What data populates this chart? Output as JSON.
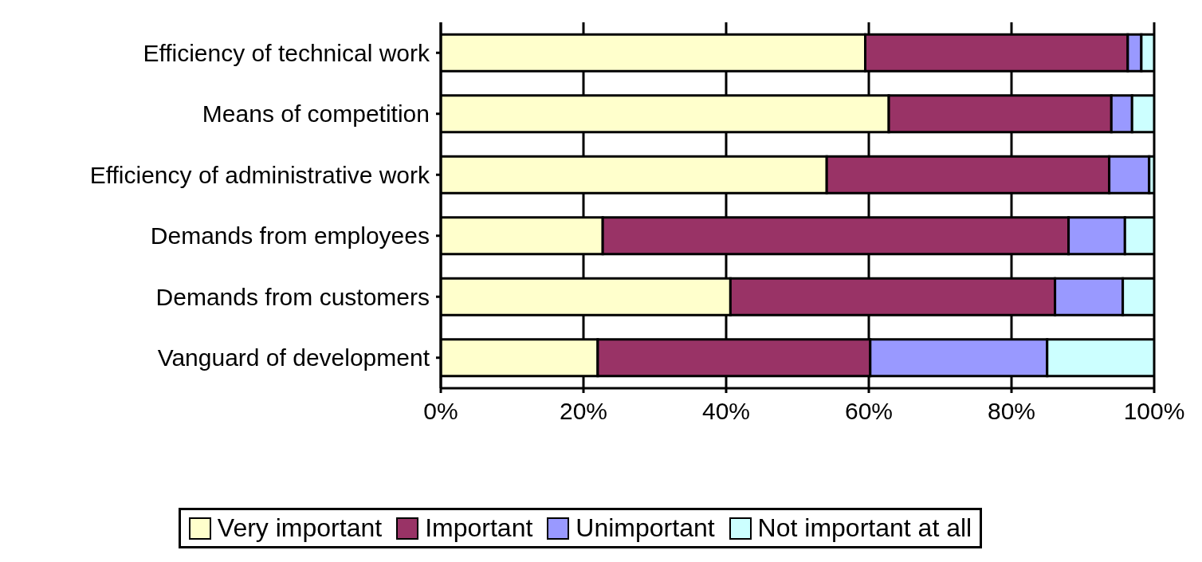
{
  "chart_data": {
    "type": "bar",
    "orientation": "horizontal",
    "stacked": true,
    "categories": [
      "Efficiency of technical work",
      "Means of competition",
      "Efficiency of administrative work",
      "Demands from employees",
      "Demands from customers",
      "Vanguard of development"
    ],
    "series": [
      {
        "name": "Very important",
        "color": "#ffffcc",
        "values": [
          59.5,
          62.8,
          54.1,
          22.7,
          40.6,
          22.0
        ]
      },
      {
        "name": "Important",
        "color": "#993366",
        "values": [
          36.8,
          31.2,
          39.6,
          65.3,
          45.5,
          38.2
        ]
      },
      {
        "name": "Unimportant",
        "color": "#9999ff",
        "values": [
          1.9,
          2.9,
          5.6,
          7.9,
          9.5,
          24.8
        ]
      },
      {
        "name": "Not important at all",
        "color": "#ccffff",
        "values": [
          1.8,
          3.1,
          0.7,
          4.1,
          4.4,
          15.0
        ]
      }
    ],
    "xlim": [
      0,
      100
    ],
    "xticks": [
      {
        "value": 0,
        "label": "0%"
      },
      {
        "value": 20,
        "label": "20%"
      },
      {
        "value": 40,
        "label": "40%"
      },
      {
        "value": 60,
        "label": "60%"
      },
      {
        "value": 80,
        "label": "80%"
      },
      {
        "value": 100,
        "label": "100%"
      }
    ],
    "grid": "x",
    "legend": "bottom"
  }
}
